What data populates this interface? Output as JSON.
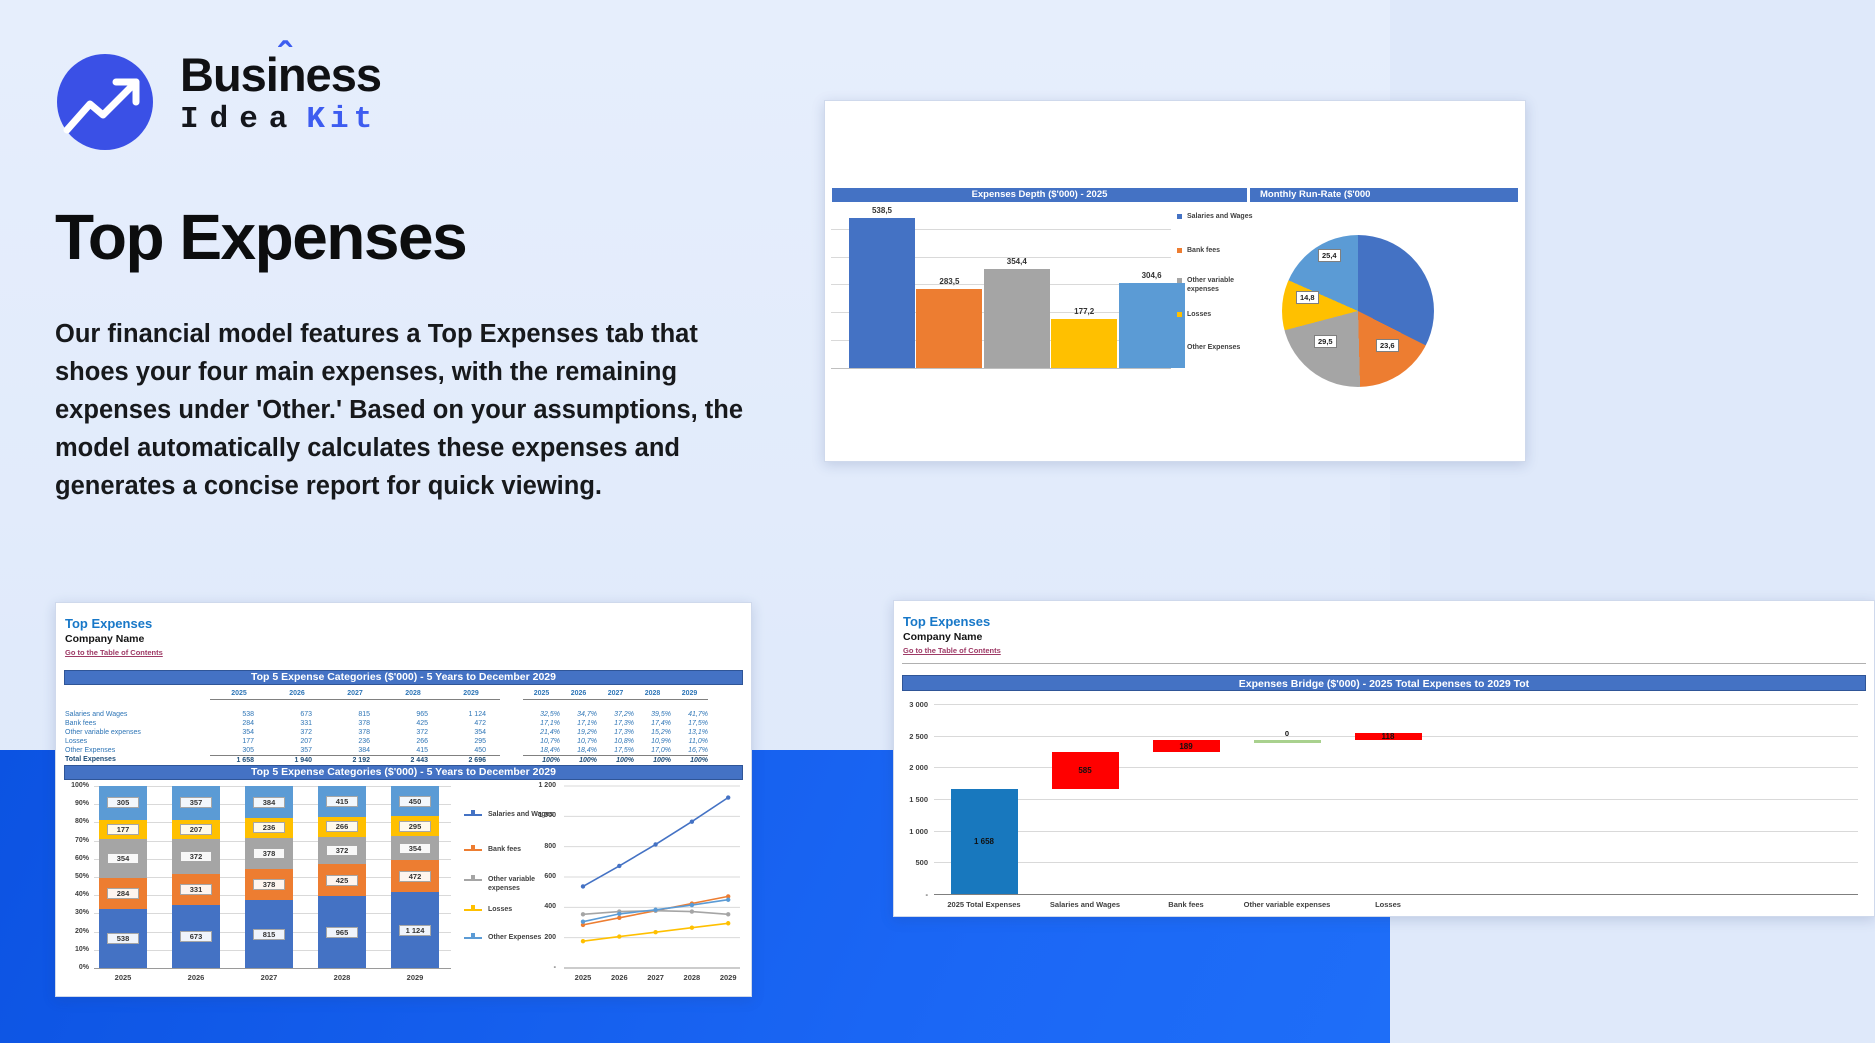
{
  "logo": {
    "word1": "Business",
    "accent": "ˆ",
    "word2": "Idea",
    "word3": "Kit"
  },
  "hero": {
    "heading": "Top Expenses",
    "paragraph": "Our financial model features a Top Expenses tab that shoes your four main expenses, with the remaining expenses under 'Other.' Based on your assumptions, the model automatically calculates these expenses and generates a concise report for quick viewing."
  },
  "colors": {
    "excel_blue": "#4472C4",
    "excel_orange": "#ED7D31",
    "excel_gray": "#A5A5A5",
    "excel_yellow": "#FFC000",
    "excel_lightblue": "#5B9BD5",
    "waterfall_blue": "#1878BE",
    "waterfall_red": "#FF0000",
    "waterfall_green": "#A9D18E",
    "header_bar_blue": "#4472C4",
    "band_blue": "#1b67f5",
    "sheet_title_blue": "#1878C8",
    "link_maroon": "#9E3A66",
    "table_text_blue": "#2E75B6"
  },
  "panels": {
    "expenses_depth": {
      "header1": "Expenses Depth ($'000) - 2025",
      "header2": "Monthly Run-Rate ($'000",
      "legend": [
        "Salaries and Wages",
        "Bank fees",
        "Other variable expenses",
        "Losses",
        "Other Expenses"
      ]
    },
    "top5": {
      "title": "Top Expenses",
      "company": "Company Name",
      "link": "Go to the Table of Contents",
      "table_header": "Top 5 Expense Categories ($'000) - 5 Years to December 2029",
      "chart_header": "Top 5 Expense Categories ($'000) - 5 Years to December 2029",
      "years": [
        "2025",
        "2026",
        "2027",
        "2028",
        "2029"
      ],
      "rows": [
        {
          "label": "Salaries and Wages",
          "values": [
            "538",
            "673",
            "815",
            "965",
            "1 124"
          ],
          "pcts": [
            "32,5%",
            "34,7%",
            "37,2%",
            "39,5%",
            "41,7%"
          ]
        },
        {
          "label": "Bank fees",
          "values": [
            "284",
            "331",
            "378",
            "425",
            "472"
          ],
          "pcts": [
            "17,1%",
            "17,1%",
            "17,3%",
            "17,4%",
            "17,5%"
          ]
        },
        {
          "label": "Other variable expenses",
          "values": [
            "354",
            "372",
            "378",
            "372",
            "354"
          ],
          "pcts": [
            "21,4%",
            "19,2%",
            "17,3%",
            "15,2%",
            "13,1%"
          ]
        },
        {
          "label": "Losses",
          "values": [
            "177",
            "207",
            "236",
            "266",
            "295"
          ],
          "pcts": [
            "10,7%",
            "10,7%",
            "10,8%",
            "10,9%",
            "11,0%"
          ]
        },
        {
          "label": "Other Expenses",
          "values": [
            "305",
            "357",
            "384",
            "415",
            "450"
          ],
          "pcts": [
            "18,4%",
            "18,4%",
            "17,5%",
            "17,0%",
            "16,7%"
          ]
        }
      ],
      "total": {
        "label": "Total Expenses",
        "values": [
          "1 658",
          "1 940",
          "2 192",
          "2 443",
          "2 696"
        ],
        "pcts": [
          "100%",
          "100%",
          "100%",
          "100%",
          "100%"
        ]
      },
      "stacked_yticks": [
        "100%",
        "90%",
        "80%",
        "70%",
        "60%",
        "50%",
        "40%",
        "30%",
        "20%",
        "10%",
        "0%"
      ],
      "line_yticks": [
        "1 200",
        "1 000",
        "800",
        "600",
        "400",
        "200",
        "-"
      ]
    },
    "bridge": {
      "title": "Top Expenses",
      "company": "Company Name",
      "link": "Go to the Table of Contents",
      "chart_header": "Expenses Bridge ($'000) - 2025 Total Expenses to 2029 Tot"
    }
  },
  "chart_data": [
    {
      "type": "bar",
      "title": "Expenses Depth ($'000) - 2025",
      "categories": [
        "Salaries and Wages",
        "Bank fees",
        "Other variable expenses",
        "Losses",
        "Other Expenses"
      ],
      "values": [
        538.5,
        283.5,
        354.4,
        177.2,
        304.6
      ],
      "labels": [
        "538,5",
        "283,5",
        "354,4",
        "177,2",
        "304,6"
      ],
      "colors": [
        "#4472C4",
        "#ED7D31",
        "#A5A5A5",
        "#FFC000",
        "#5B9BD5"
      ],
      "ylim": [
        0,
        600
      ],
      "gridline_step": 100,
      "legend_position": "right",
      "xlabel": "",
      "ylabel": ""
    },
    {
      "type": "pie",
      "title": "Monthly Run-Rate ($'000",
      "slices": [
        {
          "name": "Salaries and Wages",
          "value": 44.9,
          "color": "#4472C4",
          "label": ""
        },
        {
          "name": "Bank fees",
          "value": 23.6,
          "color": "#ED7D31",
          "label": "23,6"
        },
        {
          "name": "Other variable expenses",
          "value": 29.5,
          "color": "#A5A5A5",
          "label": "29,5"
        },
        {
          "name": "Losses",
          "value": 14.8,
          "color": "#FFC000",
          "label": "14,8"
        },
        {
          "name": "Other Expenses",
          "value": 25.4,
          "color": "#5B9BD5",
          "label": "25,4"
        }
      ]
    },
    {
      "type": "stacked-bar-and-line",
      "title": "Top 5 Expense Categories ($'000) - 5 Years to December 2029",
      "categories": [
        "2025",
        "2026",
        "2027",
        "2028",
        "2029"
      ],
      "totals": [
        1658,
        1940,
        2192,
        2443,
        2696
      ],
      "series": [
        {
          "name": "Salaries and Wages",
          "color": "#4472C4",
          "values": [
            538,
            673,
            815,
            965,
            1124
          ],
          "labels": [
            "538",
            "673",
            "815",
            "965",
            "1 124"
          ]
        },
        {
          "name": "Bank fees",
          "color": "#ED7D31",
          "values": [
            284,
            331,
            378,
            425,
            472
          ],
          "labels": [
            "284",
            "331",
            "378",
            "425",
            "472"
          ]
        },
        {
          "name": "Other variable expenses",
          "color": "#A5A5A5",
          "values": [
            354,
            372,
            378,
            372,
            354
          ],
          "labels": [
            "354",
            "372",
            "378",
            "372",
            "354"
          ]
        },
        {
          "name": "Losses",
          "color": "#FFC000",
          "values": [
            177,
            207,
            236,
            266,
            295
          ],
          "labels": [
            "177",
            "207",
            "236",
            "266",
            "295"
          ]
        },
        {
          "name": "Other Expenses",
          "color": "#5B9BD5",
          "values": [
            305,
            357,
            384,
            415,
            450
          ],
          "labels": [
            "305",
            "357",
            "384",
            "415",
            "450"
          ]
        }
      ],
      "stacked_ylim_pct": [
        0,
        100
      ],
      "line_ylim": [
        0,
        1200
      ]
    },
    {
      "type": "waterfall",
      "title": "Expenses Bridge ($'000) - 2025 Total Expenses to 2029 Tot",
      "categories": [
        "2025 Total Expenses",
        "Salaries and Wages",
        "Bank fees",
        "Other variable expenses",
        "Losses"
      ],
      "steps": [
        {
          "label": "1 658",
          "start": 0,
          "end": 1658,
          "color": "#1878BE"
        },
        {
          "label": "585",
          "start": 1658,
          "end": 2243,
          "color": "#FF0000"
        },
        {
          "label": "189",
          "start": 2243,
          "end": 2432,
          "color": "#FF0000"
        },
        {
          "label": "0",
          "start": 2432,
          "end": 2432,
          "color": "#A9D18E"
        },
        {
          "label": "118",
          "start": 2432,
          "end": 2550,
          "color": "#FF0000"
        }
      ],
      "yticks": [
        "3 000",
        "2 500",
        "2 000",
        "1 500",
        "1 000",
        "500",
        "-"
      ],
      "ylim": [
        0,
        3000
      ]
    }
  ]
}
